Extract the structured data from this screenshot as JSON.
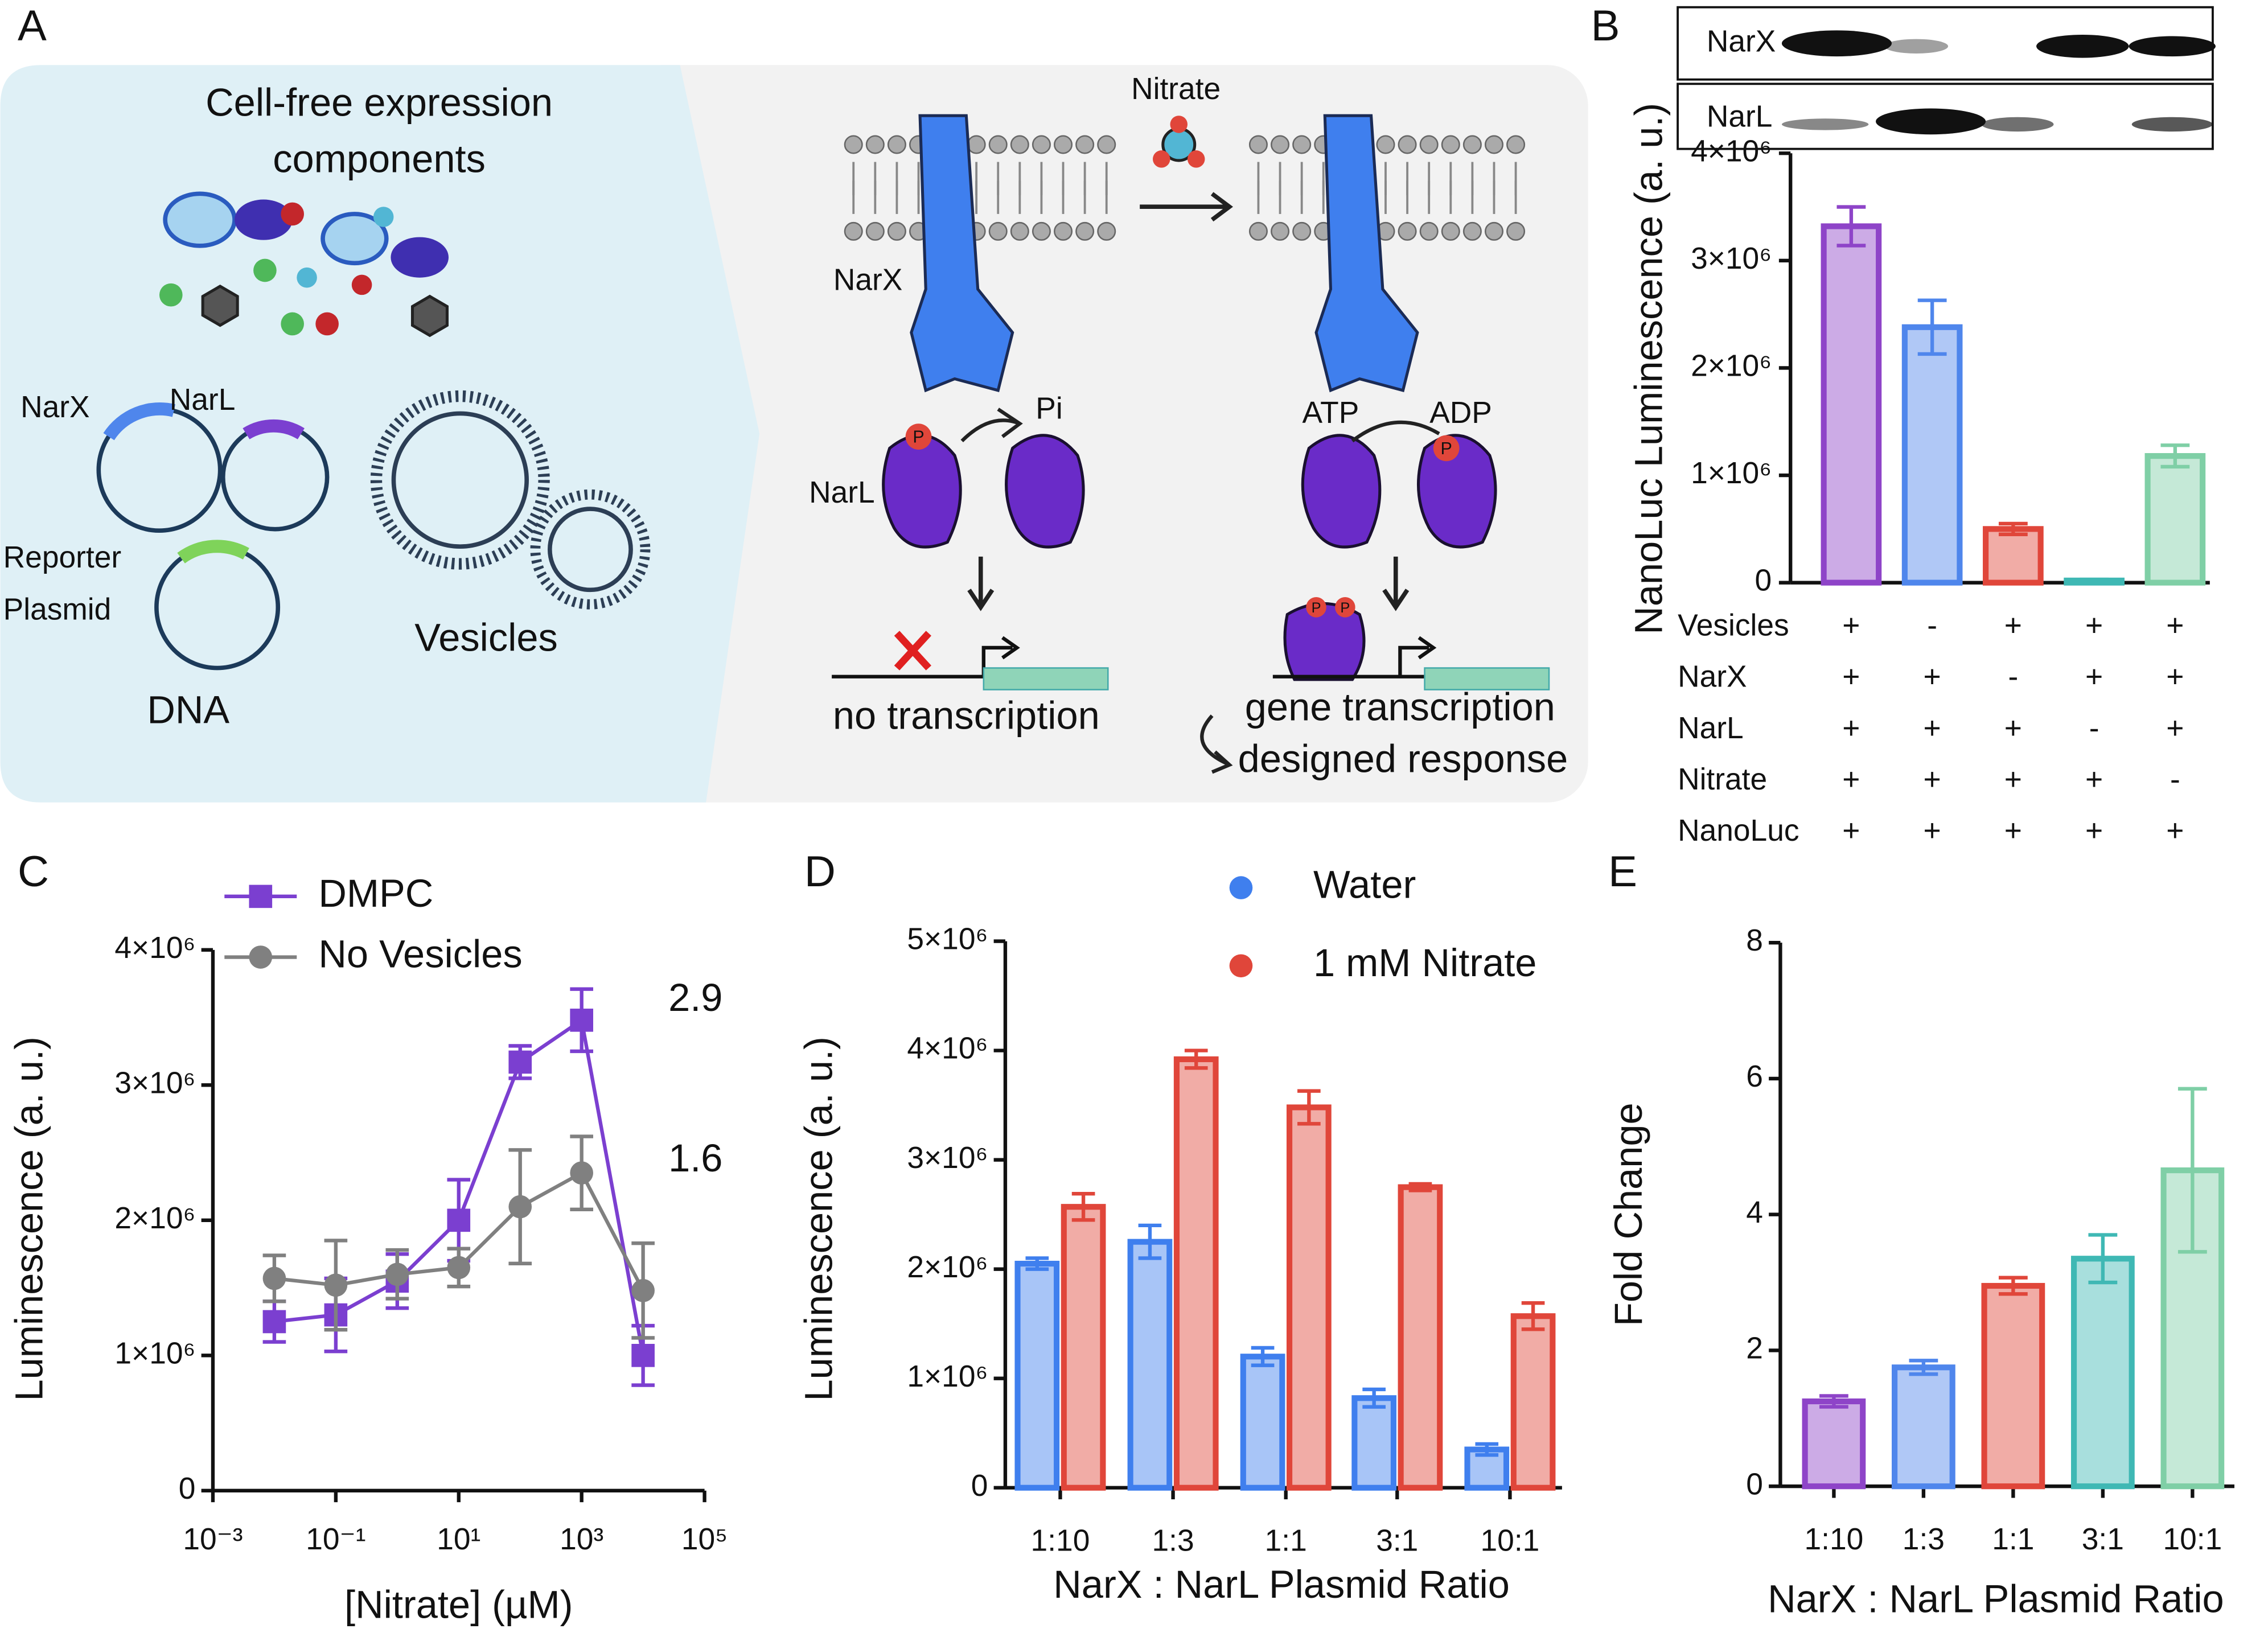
{
  "diagram": {
    "panel_label": "A",
    "left": {
      "title": [
        "Cell-free expression",
        "components"
      ],
      "plasmids": [
        "NarX",
        "NarL",
        "Reporter",
        "Plasmid"
      ],
      "dna": "DNA",
      "vesicles": "Vesicles"
    },
    "right": {
      "nitrate": "Nitrate",
      "receptor": "NarX",
      "regulator": "NarL",
      "pi": "Pi",
      "atp": "ATP",
      "adp": "ADP",
      "phospho": "P",
      "off": "no transcription",
      "on": [
        "gene transcription",
        "designed response"
      ]
    }
  },
  "chart_data": [
    {
      "type": "bar",
      "panel_label": "B",
      "ylabel": "NanoLuc Luminescence (a. u.)",
      "blot_labels": [
        "NarX",
        "NarL"
      ],
      "values": [
        3320000,
        2380000,
        500000,
        20000,
        1180000
      ],
      "errors": [
        180000,
        250000,
        50000,
        10000,
        100000
      ],
      "colors": [
        "#8e44c8",
        "#4f86ec",
        "#e0463a",
        "#3fb8b4",
        "#7fcfa6"
      ],
      "ylim": [
        0,
        4000000
      ],
      "yticks": [
        0,
        {
          "value": 1000000,
          "label": "1×10⁶"
        },
        {
          "value": 2000000,
          "label": "2×10⁶"
        },
        {
          "value": 3000000,
          "label": "3×10⁶"
        },
        {
          "value": 4000000,
          "label": "4×10⁶"
        }
      ],
      "conditions": [
        {
          "name": "Vesicles",
          "values": [
            "+",
            "-",
            "+",
            "+",
            "+"
          ]
        },
        {
          "name": "NarX",
          "values": [
            "+",
            "+",
            "-",
            "+",
            "+"
          ]
        },
        {
          "name": "NarL",
          "values": [
            "+",
            "+",
            "+",
            "-",
            "+"
          ]
        },
        {
          "name": "Nitrate",
          "values": [
            "+",
            "+",
            "+",
            "+",
            "-"
          ]
        },
        {
          "name": "NanoLuc",
          "values": [
            "+",
            "+",
            "+",
            "+",
            "+"
          ]
        }
      ]
    },
    {
      "type": "line",
      "panel_label": "C",
      "xlabel": "[Nitrate] (µM)",
      "ylabel": "Luminescence  (a. u.)",
      "xscale": "log",
      "x": [
        0.01,
        0.1,
        1,
        10,
        100,
        1000,
        10000
      ],
      "series": [
        {
          "name": "DMPC",
          "color": "#7b3fd0",
          "marker": "square",
          "values": [
            1250000,
            1300000,
            1550000,
            2000000,
            3170000,
            3480000,
            1000000
          ],
          "errors": [
            150000,
            270000,
            200000,
            300000,
            120000,
            230000,
            220000
          ]
        },
        {
          "name": "No Vesicles",
          "color": "#808080",
          "marker": "circle",
          "values": [
            1570000,
            1520000,
            1600000,
            1650000,
            2100000,
            2350000,
            1480000
          ],
          "errors": [
            170000,
            330000,
            180000,
            140000,
            420000,
            270000,
            350000
          ]
        }
      ],
      "annotations": [
        "2.9",
        "1.6"
      ],
      "xlim": [
        0.001,
        100000
      ],
      "xticks": [
        {
          "value": 0.001,
          "label": "10⁻³"
        },
        {
          "value": 0.1,
          "label": "10⁻¹"
        },
        {
          "value": 10,
          "label": "10¹"
        },
        {
          "value": 1000,
          "label": "10³"
        },
        {
          "value": 100000,
          "label": "10⁵"
        }
      ],
      "ylim": [
        0,
        4000000
      ],
      "yticks": [
        0,
        {
          "value": 1000000,
          "label": "1×10⁶"
        },
        {
          "value": 2000000,
          "label": "2×10⁶"
        },
        {
          "value": 3000000,
          "label": "3×10⁶"
        },
        {
          "value": 4000000,
          "label": "4×10⁶"
        }
      ]
    },
    {
      "type": "grouped_bar",
      "panel_label": "D",
      "xlabel": "NarX : NarL Plasmid Ratio",
      "ylabel": "Luminescence  (a. u.)",
      "categories": [
        "1:10",
        "1:3",
        "1:1",
        "3:1",
        "10:1"
      ],
      "series": [
        {
          "name": "Water",
          "color": "#3f7fee",
          "values": [
            2050000,
            2250000,
            1200000,
            820000,
            350000
          ],
          "errors": [
            50000,
            150000,
            80000,
            80000,
            50000
          ]
        },
        {
          "name": "1 mM Nitrate",
          "color": "#e0463a",
          "values": [
            2570000,
            3920000,
            3480000,
            2750000,
            1570000
          ],
          "errors": [
            120000,
            80000,
            150000,
            30000,
            120000
          ]
        }
      ],
      "ylim": [
        0,
        5000000
      ],
      "yticks": [
        0,
        {
          "value": 1000000,
          "label": "1×10⁶"
        },
        {
          "value": 2000000,
          "label": "2×10⁶"
        },
        {
          "value": 3000000,
          "label": "3×10⁶"
        },
        {
          "value": 4000000,
          "label": "4×10⁶"
        },
        {
          "value": 5000000,
          "label": "5×10⁶"
        }
      ]
    },
    {
      "type": "bar",
      "panel_label": "E",
      "xlabel": "NarX : NarL Plasmid Ratio",
      "ylabel": "Fold Change",
      "categories": [
        "1:10",
        "1:3",
        "1:1",
        "3:1",
        "10:1"
      ],
      "values": [
        1.25,
        1.75,
        2.95,
        3.35,
        4.65
      ],
      "errors": [
        0.08,
        0.1,
        0.12,
        0.35,
        1.2
      ],
      "colors": [
        "#8e44c8",
        "#4f86ec",
        "#e0463a",
        "#3fb8b4",
        "#7fcfa6"
      ],
      "ylim": [
        0,
        8
      ],
      "yticks": [
        0,
        2,
        4,
        6,
        8
      ]
    }
  ]
}
